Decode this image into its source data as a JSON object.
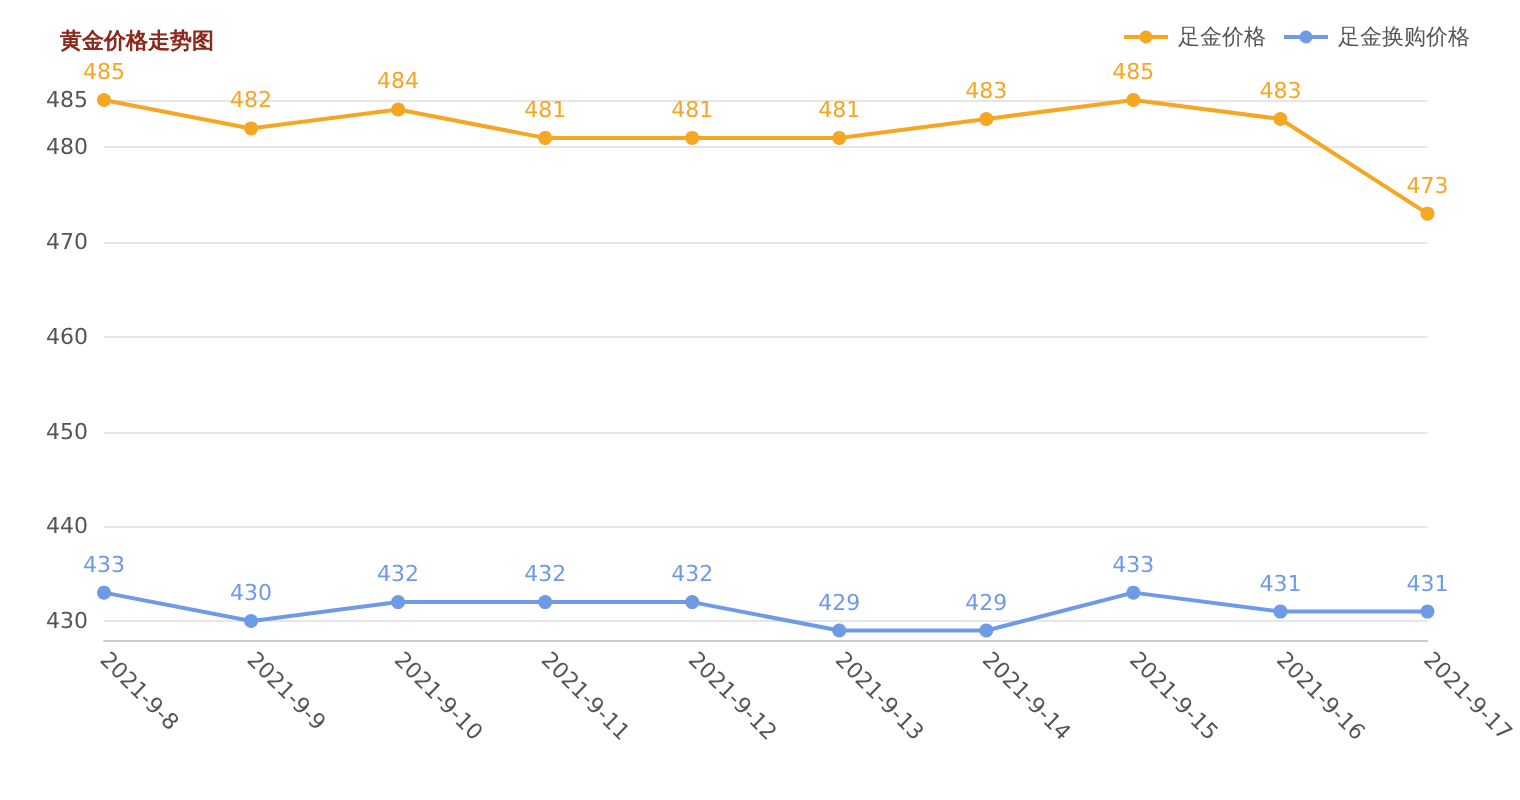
{
  "chart_data": {
    "type": "line",
    "title": "黄金价格走势图",
    "categories": [
      "2021-9-8",
      "2021-9-9",
      "2021-9-10",
      "2021-9-11",
      "2021-9-12",
      "2021-9-13",
      "2021-9-14",
      "2021-9-15",
      "2021-9-16",
      "2021-9-17"
    ],
    "series": [
      {
        "name": "足金价格",
        "color": "#f5a623",
        "values": [
          485,
          482,
          484,
          481,
          481,
          481,
          483,
          485,
          483,
          473
        ]
      },
      {
        "name": "足金换购价格",
        "color": "#6e9ae6",
        "values": [
          433,
          430,
          432,
          432,
          432,
          429,
          429,
          433,
          431,
          431
        ]
      }
    ],
    "ylim": [
      428,
      485
    ],
    "yticks": [
      430,
      440,
      450,
      460,
      470,
      480,
      485
    ],
    "grid": "y",
    "legend": "top right",
    "marker": "circle",
    "line_style": "solid",
    "data_labels": true
  }
}
